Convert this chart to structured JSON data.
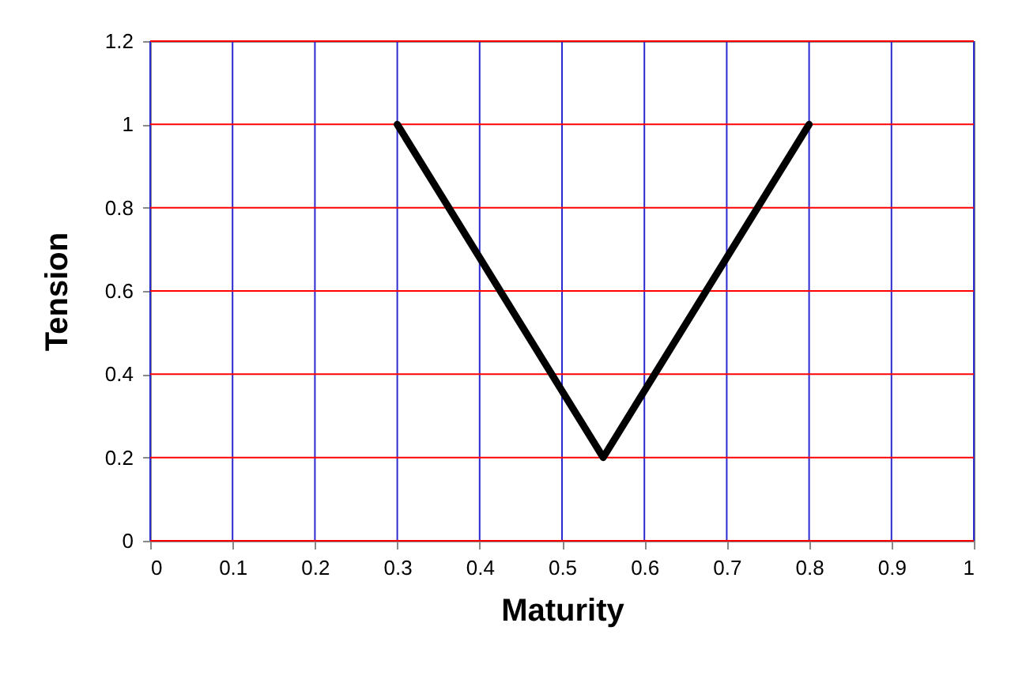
{
  "chart_data": {
    "type": "line",
    "xlabel": "Maturity",
    "ylabel": "Tension",
    "x": [
      0.3,
      0.55,
      0.8
    ],
    "series": [
      {
        "color": "#000000",
        "values": [
          1,
          0.2,
          1
        ]
      }
    ],
    "xlim": [
      0,
      1
    ],
    "xticks": [
      0,
      0.1,
      0.2,
      0.3,
      0.4,
      0.5,
      0.6,
      0.7,
      0.8,
      0.9,
      1
    ],
    "ylim": [
      0,
      1.2
    ],
    "yticks": [
      0,
      0.2,
      0.4,
      0.6,
      0.8,
      1,
      1.2
    ],
    "grid": true,
    "marker": "none",
    "line_style": "solid"
  }
}
